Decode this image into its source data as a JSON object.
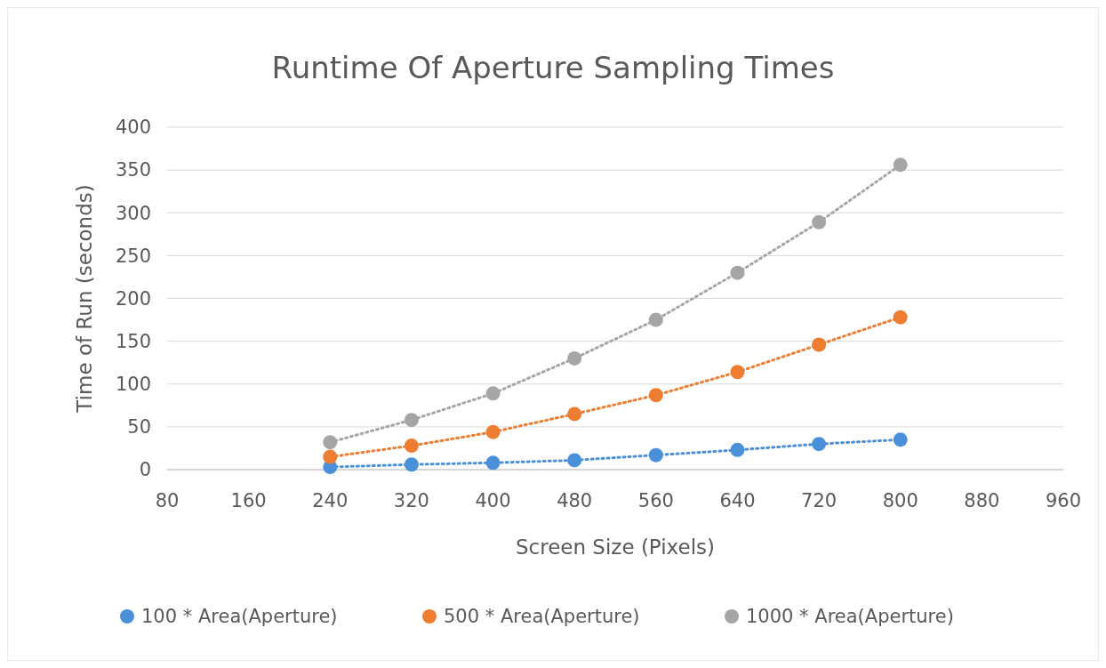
{
  "chart_data": {
    "type": "line",
    "title": "Runtime Of Aperture Sampling Times",
    "xlabel": "Screen Size (Pixels)",
    "ylabel": "Time of Run (seconds)",
    "x": [
      240,
      320,
      400,
      480,
      560,
      640,
      720,
      800
    ],
    "series": [
      {
        "name": "100 * Area(Aperture)",
        "color": "#4a90d9",
        "values": [
          3,
          6,
          8,
          11,
          17,
          23,
          30,
          35
        ]
      },
      {
        "name": "500 * Area(Aperture)",
        "color": "#ed7d31",
        "values": [
          15,
          28,
          44,
          65,
          87,
          114,
          146,
          178
        ]
      },
      {
        "name": "1000 * Area(Aperture)",
        "color": "#a5a5a5",
        "values": [
          32,
          58,
          89,
          130,
          175,
          230,
          289,
          356
        ]
      }
    ],
    "xlim": [
      80,
      960
    ],
    "xticks": [
      80,
      160,
      240,
      320,
      400,
      480,
      560,
      640,
      720,
      800,
      880,
      960
    ],
    "ylim": [
      0,
      400
    ],
    "yticks": [
      0,
      50,
      100,
      150,
      200,
      250,
      300,
      350,
      400
    ],
    "grid": "y",
    "legend": "bottom",
    "marker": "circle",
    "line_style": "dotted"
  }
}
